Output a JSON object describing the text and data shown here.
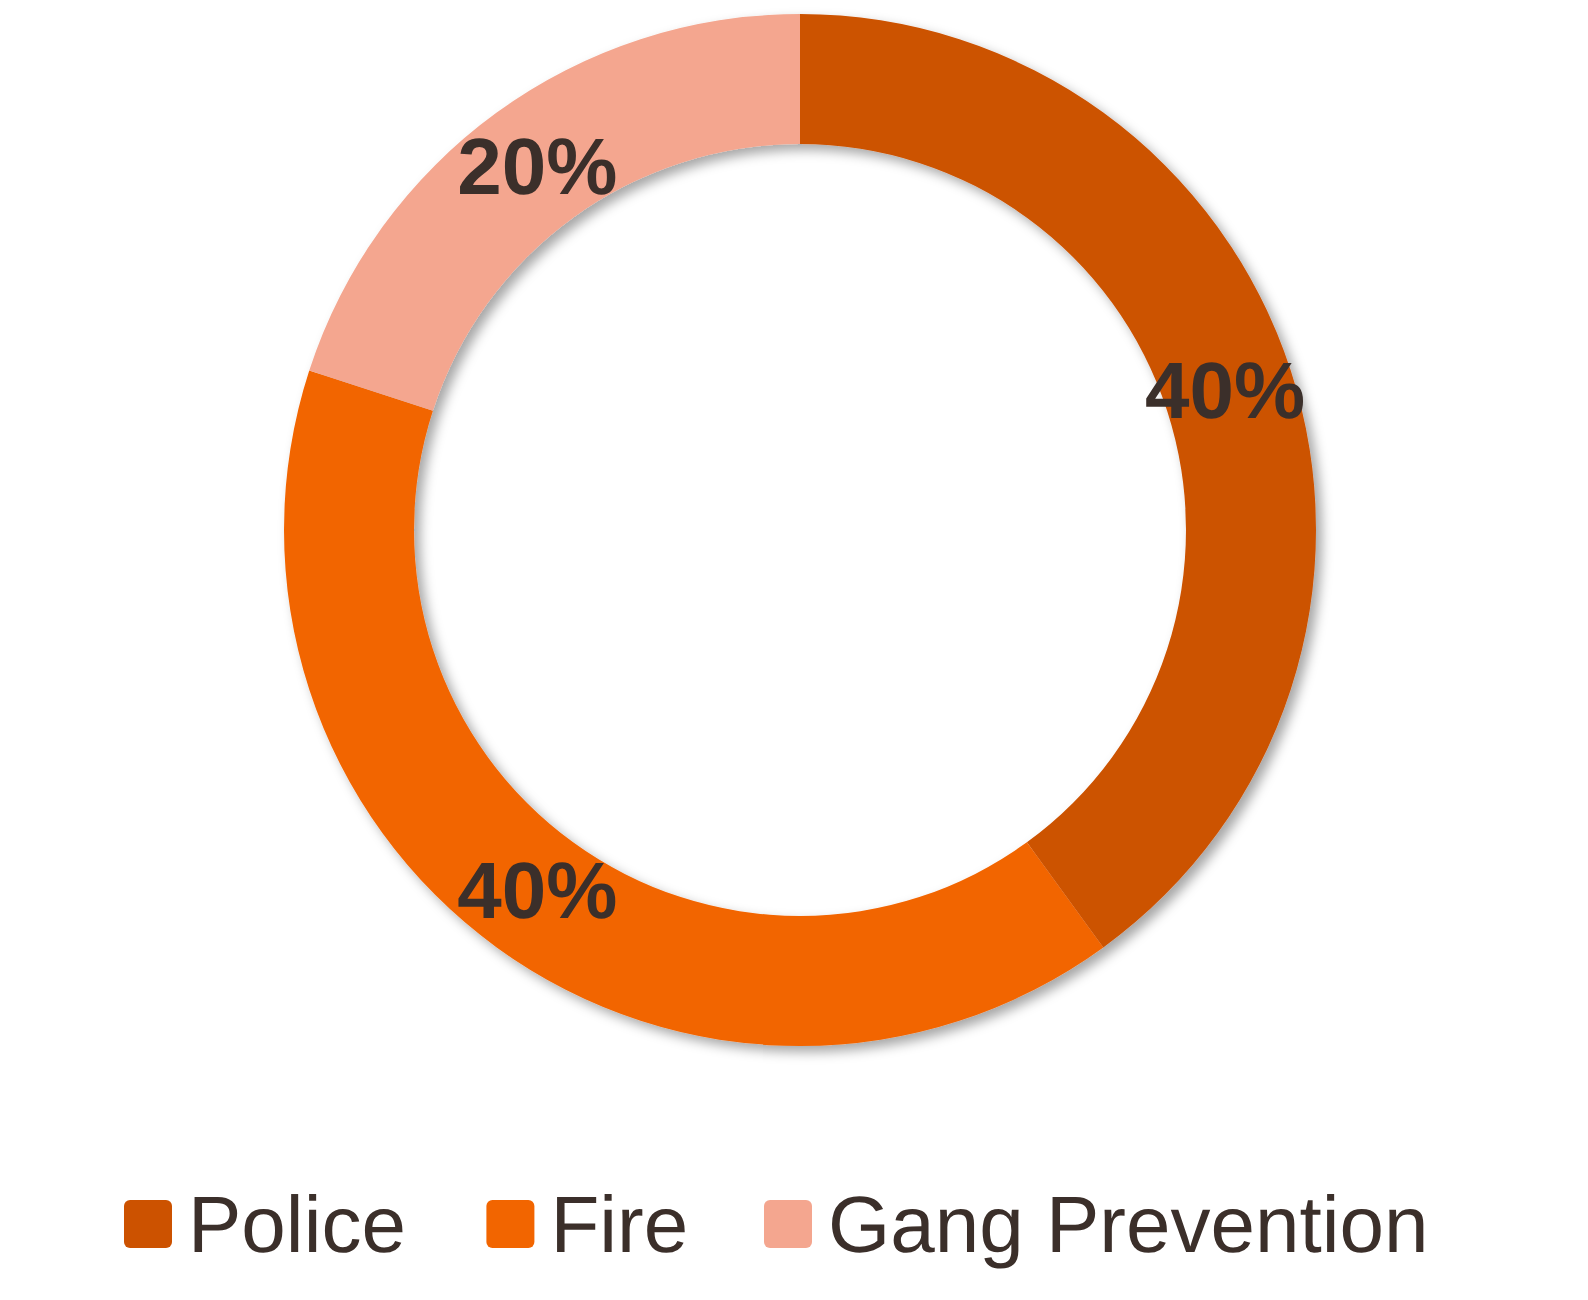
{
  "chart_data": {
    "type": "donut",
    "categories": [
      "Police",
      "Fire",
      "Gang Prevention"
    ],
    "values": [
      40,
      40,
      20
    ],
    "colors": [
      "#cc5200",
      "#f26500",
      "#f4a68f"
    ],
    "value_labels": [
      "40%",
      "40%",
      "20%"
    ],
    "legend": "bottom"
  }
}
